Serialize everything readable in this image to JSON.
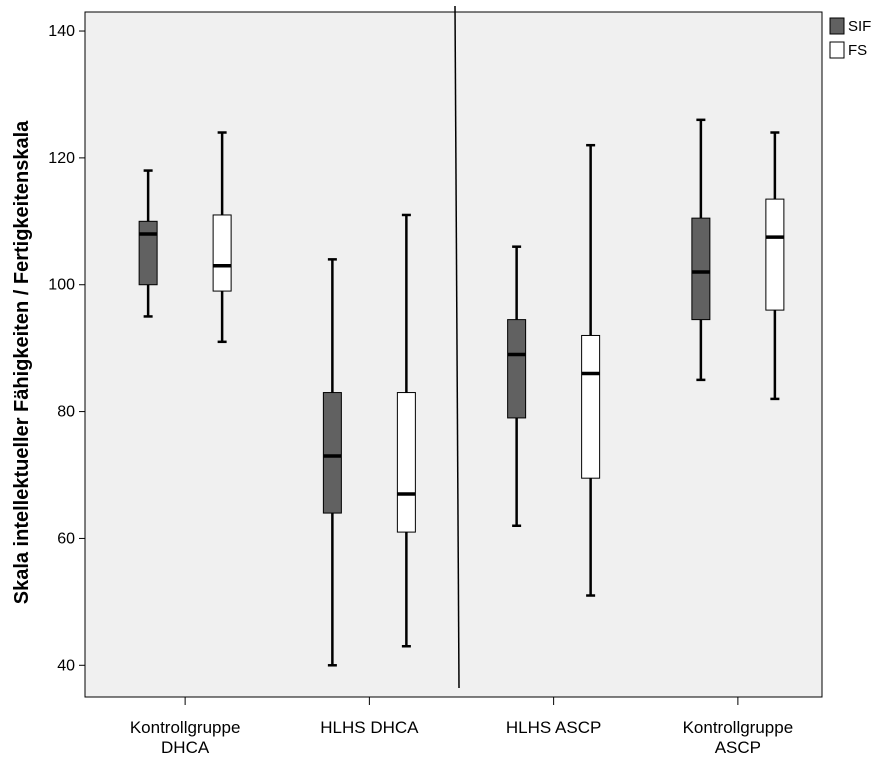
{
  "chart_data": {
    "type": "boxplot",
    "ylabel": "Skala intellektueller Fähigkeiten / Fertigkeitenskala",
    "xlabel": "",
    "ylim": [
      35,
      143
    ],
    "yticks": [
      40,
      60,
      80,
      100,
      120,
      140
    ],
    "grid": false,
    "legend_position": "top-right, outside plot",
    "categories": [
      [
        "Kontrollgruppe",
        "DHCA"
      ],
      [
        "HLHS DHCA"
      ],
      [
        "HLHS ASCP"
      ],
      [
        "Kontrollgruppe",
        "ASCP"
      ]
    ],
    "divider_between": [
      2,
      3
    ],
    "series": [
      {
        "name": "SIF",
        "color": "#616161",
        "boxes": [
          {
            "min": 95,
            "q1": 100,
            "median": 108,
            "q3": 110,
            "max": 118
          },
          {
            "min": 40,
            "q1": 64,
            "median": 73,
            "q3": 83,
            "max": 104
          },
          {
            "min": 62,
            "q1": 79,
            "median": 89,
            "q3": 94.5,
            "max": 106
          },
          {
            "min": 85,
            "q1": 94.5,
            "median": 102,
            "q3": 110.5,
            "max": 126
          }
        ]
      },
      {
        "name": "FS",
        "color": "#ffffff",
        "boxes": [
          {
            "min": 91,
            "q1": 99,
            "median": 103,
            "q3": 111,
            "max": 124
          },
          {
            "min": 43,
            "q1": 61,
            "median": 67,
            "q3": 83,
            "max": 111
          },
          {
            "min": 51,
            "q1": 69.5,
            "median": 86,
            "q3": 92,
            "max": 122
          },
          {
            "min": 82,
            "q1": 96,
            "median": 107.5,
            "q3": 113.5,
            "max": 124
          }
        ]
      }
    ]
  }
}
